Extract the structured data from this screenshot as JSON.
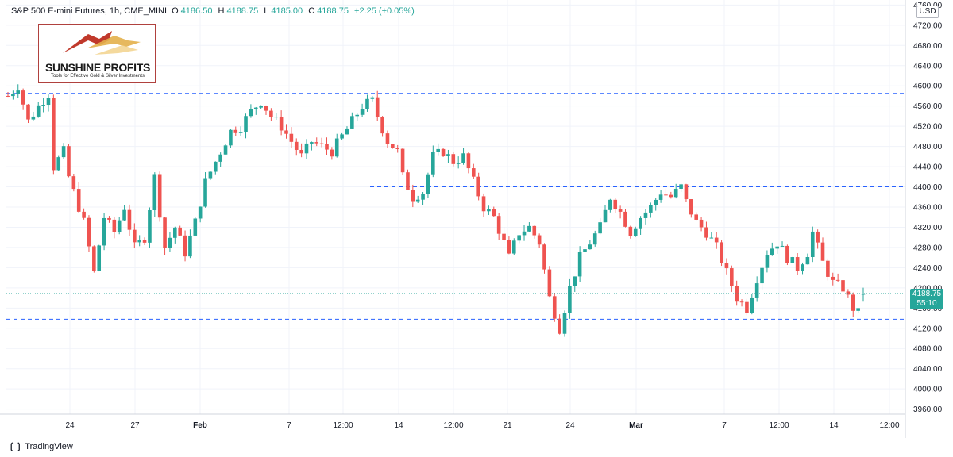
{
  "header": {
    "symbol": "S&P 500 E-mini Futures, 1h, CME_MINI",
    "o_label": "O",
    "o_value": "4186.50",
    "h_label": "H",
    "h_value": "4188.75",
    "l_label": "L",
    "l_value": "4185.00",
    "c_label": "C",
    "c_value": "4188.75",
    "change": "+2.25 (+0.05%)"
  },
  "logo": {
    "title": "SUNSHINE PROFITS",
    "tagline": "Tools for Effective Gold & Silver Investments"
  },
  "price_scale": {
    "currency": "USD"
  },
  "last_price": {
    "value": "4188.75",
    "countdown": "55:10"
  },
  "branding": {
    "text": "TradingView"
  },
  "colors": {
    "up": "#26a69a",
    "down": "#ef5350",
    "level_line": "#2962ff",
    "accent": "#26a69a"
  },
  "chart_data": {
    "type": "candlestick",
    "title": "S&P 500 E-mini Futures, 1h, CME_MINI",
    "ylim": [
      3950,
      4770
    ],
    "y_ticks": [
      3960,
      4000,
      4040,
      4080,
      4120,
      4160,
      4200,
      4240,
      4280,
      4320,
      4360,
      4400,
      4440,
      4480,
      4520,
      4560,
      4600,
      4640,
      4680,
      4720,
      4760
    ],
    "y_tick_labels": [
      "3960.00",
      "4000.00",
      "4040.00",
      "4080.00",
      "4120.00",
      "4160.00",
      "4200.00",
      "4240.00",
      "4280.00",
      "4320.00",
      "4360.00",
      "4400.00",
      "4440.00",
      "4480.00",
      "4520.00",
      "4560.00",
      "4600.00",
      "4640.00",
      "4680.00",
      "4720.00",
      "4760.00"
    ],
    "x_tick_labels": [
      "24",
      "27",
      "Feb",
      "7",
      "12:00",
      "14",
      "12:00",
      "21",
      "24",
      "Mar",
      "7",
      "12:00",
      "14",
      "12:00"
    ],
    "horizontal_levels": [
      4585,
      4400,
      4138
    ],
    "price_path": [
      [
        0,
        4580
      ],
      [
        2,
        4600
      ],
      [
        4,
        4530
      ],
      [
        6,
        4560
      ],
      [
        8,
        4585
      ],
      [
        9,
        4440
      ],
      [
        11,
        4470
      ],
      [
        12,
        4420
      ],
      [
        15,
        4330
      ],
      [
        17,
        4230
      ],
      [
        19,
        4340
      ],
      [
        21,
        4310
      ],
      [
        23,
        4360
      ],
      [
        25,
        4280
      ],
      [
        27,
        4300
      ],
      [
        29,
        4420
      ],
      [
        31,
        4280
      ],
      [
        33,
        4320
      ],
      [
        35,
        4270
      ],
      [
        37,
        4330
      ],
      [
        39,
        4410
      ],
      [
        41,
        4450
      ],
      [
        44,
        4510
      ],
      [
        46,
        4520
      ],
      [
        48,
        4550
      ],
      [
        50,
        4570
      ],
      [
        52,
        4540
      ],
      [
        54,
        4520
      ],
      [
        56,
        4490
      ],
      [
        58,
        4460
      ],
      [
        60,
        4490
      ],
      [
        62,
        4480
      ],
      [
        64,
        4470
      ],
      [
        66,
        4500
      ],
      [
        68,
        4530
      ],
      [
        70,
        4560
      ],
      [
        72,
        4570
      ],
      [
        73,
        4540
      ],
      [
        75,
        4490
      ],
      [
        77,
        4470
      ],
      [
        78,
        4420
      ],
      [
        80,
        4380
      ],
      [
        82,
        4390
      ],
      [
        84,
        4460
      ],
      [
        86,
        4470
      ],
      [
        88,
        4450
      ],
      [
        90,
        4460
      ],
      [
        92,
        4410
      ],
      [
        94,
        4360
      ],
      [
        96,
        4340
      ],
      [
        98,
        4290
      ],
      [
        99,
        4260
      ],
      [
        101,
        4310
      ],
      [
        103,
        4320
      ],
      [
        105,
        4290
      ],
      [
        107,
        4180
      ],
      [
        109,
        4120
      ],
      [
        111,
        4200
      ],
      [
        113,
        4260
      ],
      [
        115,
        4290
      ],
      [
        117,
        4320
      ],
      [
        119,
        4380
      ],
      [
        121,
        4350
      ],
      [
        123,
        4310
      ],
      [
        125,
        4340
      ],
      [
        127,
        4360
      ],
      [
        129,
        4390
      ],
      [
        131,
        4380
      ],
      [
        133,
        4400
      ],
      [
        134,
        4370
      ],
      [
        136,
        4330
      ],
      [
        138,
        4310
      ],
      [
        140,
        4280
      ],
      [
        142,
        4230
      ],
      [
        144,
        4180
      ],
      [
        146,
        4160
      ],
      [
        148,
        4220
      ],
      [
        150,
        4270
      ],
      [
        152,
        4290
      ],
      [
        154,
        4260
      ],
      [
        156,
        4240
      ],
      [
        158,
        4270
      ],
      [
        159,
        4310
      ],
      [
        161,
        4250
      ],
      [
        163,
        4210
      ],
      [
        165,
        4200
      ],
      [
        167,
        4160
      ],
      [
        168,
        4150
      ],
      [
        169,
        4188.75
      ]
    ],
    "candles_total": 170,
    "last": {
      "open": 4186.5,
      "high": 4188.75,
      "low": 4185.0,
      "close": 4188.75
    }
  }
}
